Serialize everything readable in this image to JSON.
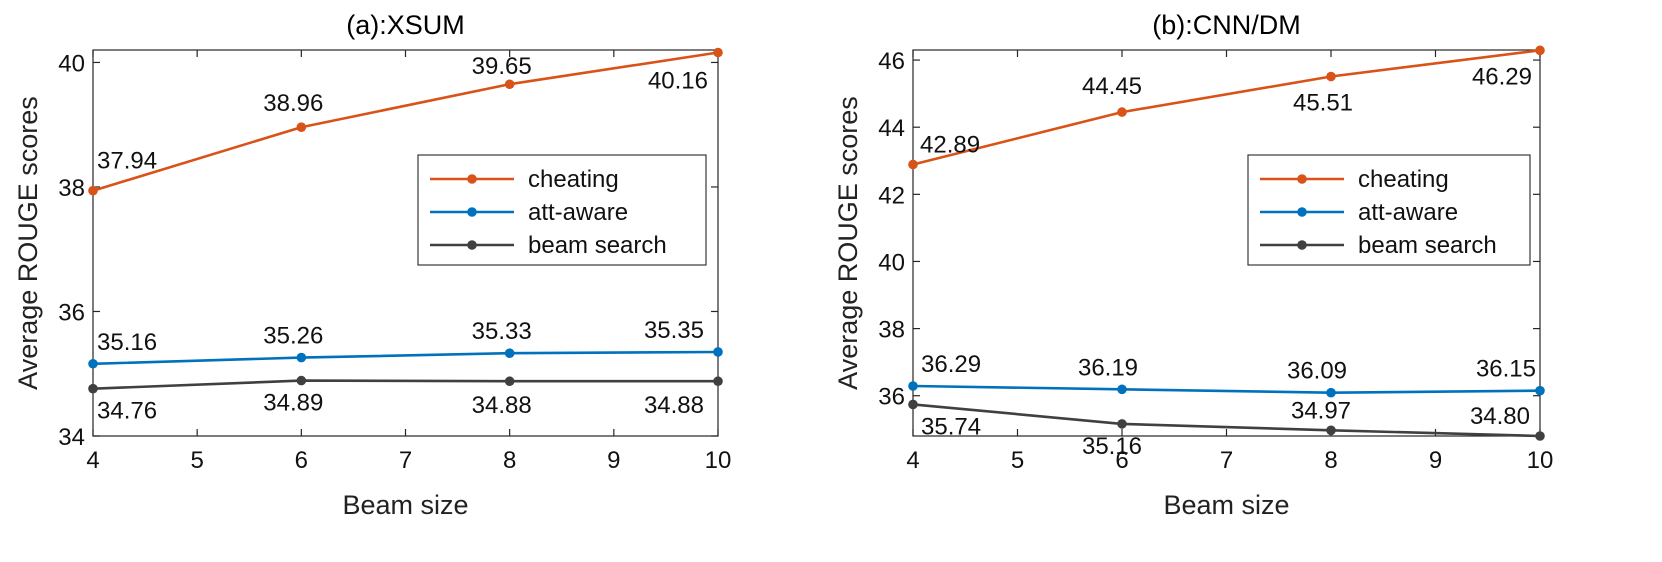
{
  "chart_data": [
    {
      "type": "line",
      "title": "(a):XSUM",
      "xlabel": "Beam size",
      "ylabel": "Average ROUGE scores",
      "xlim": [
        4,
        10
      ],
      "ylim": [
        34,
        40.2
      ],
      "xticks": [
        4,
        5,
        6,
        7,
        8,
        9,
        10
      ],
      "yticks": [
        34,
        36,
        38,
        40
      ],
      "x": [
        4,
        6,
        8,
        10
      ],
      "legend_position": "center-right",
      "series": [
        {
          "name": "cheating",
          "color": "#d95319",
          "values": [
            37.94,
            38.96,
            39.65,
            40.16
          ],
          "labels": [
            "37.94",
            "38.96",
            "39.65",
            "40.16"
          ]
        },
        {
          "name": "att-aware",
          "color": "#0072bd",
          "values": [
            35.16,
            35.26,
            35.33,
            35.35
          ],
          "labels": [
            "35.16",
            "35.26",
            "35.33",
            "35.35"
          ]
        },
        {
          "name": "beam search",
          "color": "#404040",
          "values": [
            34.76,
            34.89,
            34.88,
            34.88
          ],
          "labels": [
            "34.76",
            "34.89",
            "34.88",
            "34.88"
          ]
        }
      ]
    },
    {
      "type": "line",
      "title": "(b):CNN/DM",
      "xlabel": "Beam size",
      "ylabel": "Average ROUGE scores",
      "xlim": [
        4,
        10
      ],
      "ylim": [
        34.8,
        46.3
      ],
      "xticks": [
        4,
        5,
        6,
        7,
        8,
        9,
        10
      ],
      "yticks": [
        36,
        38,
        40,
        42,
        44,
        46
      ],
      "x": [
        4,
        6,
        8,
        10
      ],
      "legend_position": "center-right",
      "series": [
        {
          "name": "cheating",
          "color": "#d95319",
          "values": [
            42.89,
            44.45,
            45.51,
            46.29
          ],
          "labels": [
            "42.89",
            "44.45",
            "45.51",
            "46.29"
          ]
        },
        {
          "name": "att-aware",
          "color": "#0072bd",
          "values": [
            36.29,
            36.19,
            36.09,
            36.15
          ],
          "labels": [
            "36.29",
            "36.19",
            "36.09",
            "36.15"
          ]
        },
        {
          "name": "beam search",
          "color": "#404040",
          "values": [
            35.74,
            35.16,
            34.97,
            34.8
          ],
          "labels": [
            "35.74",
            "35.16",
            "34.97",
            "34.80"
          ]
        }
      ]
    }
  ]
}
